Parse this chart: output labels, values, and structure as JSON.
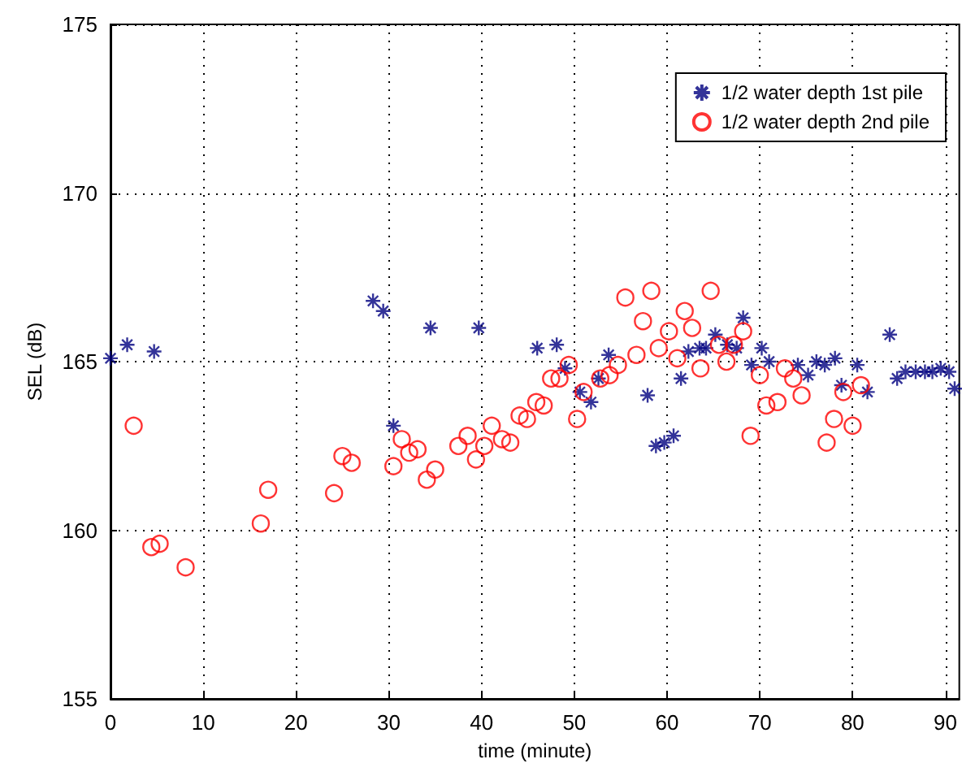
{
  "chart_data": {
    "type": "scatter",
    "xlabel": "time (minute)",
    "ylabel": "SEL (dB)",
    "xlim": [
      0,
      91.5
    ],
    "xticks": [
      0,
      10,
      20,
      30,
      40,
      50,
      60,
      70,
      80,
      90
    ],
    "ylim": [
      155,
      175
    ],
    "yticks": [
      155,
      160,
      165,
      170,
      175
    ],
    "grid": true,
    "legend": "top right",
    "series": [
      {
        "name": "1/2 water depth 1st pile",
        "color": "#000080",
        "marker": "cross",
        "x": [
          0,
          1.8,
          4.7,
          28.3,
          29.4,
          30.5,
          34.5,
          39.7,
          46.0,
          48.1,
          49.0,
          50.6,
          51.8,
          52.6,
          53.7,
          57.9,
          58.8,
          59.7,
          60.7,
          61.5,
          62.3,
          63.5,
          64.2,
          65.2,
          66.5,
          67.5,
          68.2,
          69.1,
          70.2,
          71.0,
          74.1,
          75.2,
          76.1,
          77.0,
          78.1,
          78.8,
          80.5,
          81.6,
          84.0,
          84.8,
          85.7,
          86.8,
          87.8,
          88.6,
          89.5,
          90.4,
          91.0
        ],
        "values": [
          165.1,
          165.5,
          165.3,
          166.8,
          166.5,
          163.1,
          166.0,
          166.0,
          165.4,
          165.5,
          164.8,
          164.1,
          163.8,
          164.5,
          165.2,
          164.0,
          162.5,
          162.6,
          162.8,
          164.5,
          165.3,
          165.4,
          165.4,
          165.8,
          165.5,
          165.4,
          166.3,
          164.9,
          165.4,
          165.0,
          164.9,
          164.6,
          165.0,
          164.9,
          165.1,
          164.3,
          164.9,
          164.1,
          165.8,
          164.5,
          164.7,
          164.7,
          164.7,
          164.7,
          164.8,
          164.7,
          164.2
        ]
      },
      {
        "name": "1/2 water depth 2nd pile",
        "color": "#ff0000",
        "marker": "circle",
        "x": [
          2.5,
          4.4,
          5.3,
          8.1,
          16.2,
          17.0,
          24.1,
          25.0,
          26.0,
          30.5,
          31.4,
          32.2,
          33.1,
          34.1,
          35.0,
          37.5,
          38.5,
          39.4,
          40.3,
          41.1,
          42.2,
          43.1,
          44.1,
          44.9,
          45.9,
          46.7,
          47.5,
          48.4,
          49.4,
          50.3,
          51.0,
          52.8,
          53.8,
          54.7,
          55.5,
          56.7,
          57.4,
          58.3,
          59.1,
          60.2,
          61.1,
          61.9,
          62.7,
          63.6,
          64.7,
          65.6,
          66.4,
          67.2,
          68.2,
          69.0,
          70.0,
          70.7,
          71.9,
          72.7,
          73.6,
          74.5,
          77.2,
          78.0,
          79.0,
          80.0,
          80.9
        ],
        "values": [
          163.1,
          159.5,
          159.6,
          158.9,
          160.2,
          161.2,
          161.1,
          162.2,
          162.0,
          161.9,
          162.7,
          162.3,
          162.4,
          161.5,
          161.8,
          162.5,
          162.8,
          162.1,
          162.5,
          163.1,
          162.7,
          162.6,
          163.4,
          163.3,
          163.8,
          163.7,
          164.5,
          164.5,
          164.9,
          163.3,
          164.1,
          164.5,
          164.6,
          164.9,
          166.9,
          165.2,
          166.2,
          167.1,
          165.4,
          165.9,
          165.1,
          166.5,
          166.0,
          164.8,
          167.1,
          165.5,
          165.0,
          165.5,
          165.9,
          162.8,
          164.6,
          163.7,
          163.8,
          164.8,
          164.5,
          164.0,
          162.6,
          163.3,
          164.1,
          163.1,
          164.3
        ]
      }
    ]
  }
}
